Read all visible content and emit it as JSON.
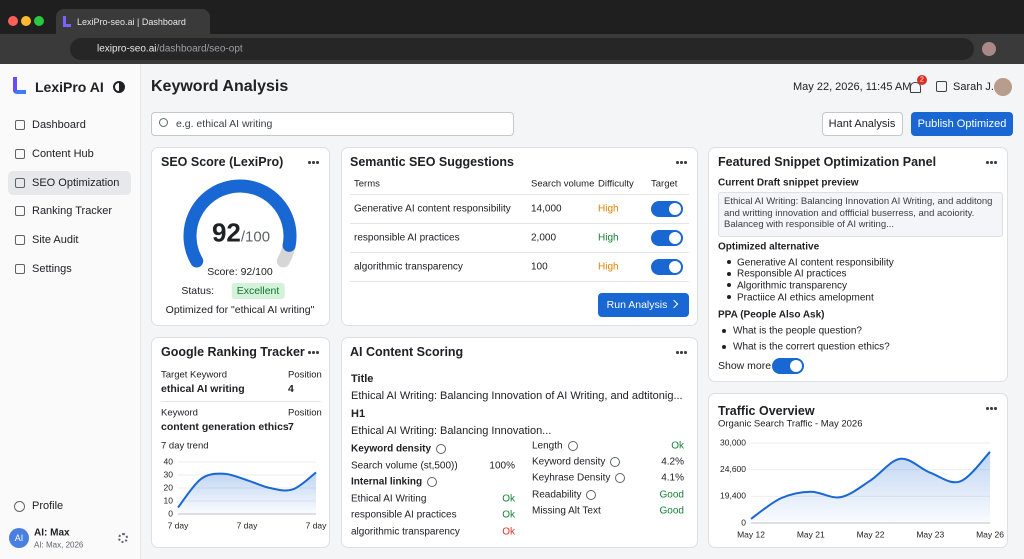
{
  "browser": {
    "tab_title": "LexiPro-seo.ai | Dashboard",
    "url_host": "lexipro-seo.ai",
    "url_path": "/dashboard/seo-opt"
  },
  "sidebar": {
    "brand": "LexiPro AI",
    "nav": [
      "Dashboard",
      "Content Hub",
      "SEO Optimization",
      "Ranking Tracker",
      "Site Audit",
      "Settings"
    ],
    "active": 2,
    "profile": "Profile",
    "user": {
      "initials": "AI",
      "name": "AI: Max",
      "subtitle": "AI: Max, 2026"
    }
  },
  "header": {
    "title": "Keyword Analysis",
    "datetime": "May 22, 2026, 11:45 AM",
    "notifications": "2",
    "user": "Sarah J."
  },
  "toolbar": {
    "search_placeholder": "e.g. ethical AI writing",
    "buttons": [
      "Hant Analysis",
      "Publish Optimized"
    ]
  },
  "seo_score": {
    "title": "SEO Score (LexiPro)",
    "chart": {
      "type": "gauge",
      "value": 92,
      "range": [
        0,
        100
      ],
      "color": "#1967d2",
      "track_color": "#d6d6d6"
    },
    "max_label": "/100",
    "score_text": "Score: 92/100",
    "status_label": "Status:",
    "status": "Excellent",
    "note": "Optimized for \"ethical AI writing\""
  },
  "semantic": {
    "title": "Semantic SEO Suggestions",
    "columns": [
      "Terms",
      "Search volume",
      "Difficulty",
      "Target"
    ],
    "rows": [
      {
        "term": "Generative AI content responsibility",
        "volume": "14,000",
        "difficulty": "High",
        "difficulty_color": "#e08600",
        "target": true
      },
      {
        "term": "responsible AI practices",
        "volume": "2,000",
        "difficulty": "High",
        "difficulty_color": "#188038",
        "target": true
      },
      {
        "term": "algorithmic transparency",
        "volume": "100",
        "difficulty": "High",
        "difficulty_color": "#e08600",
        "target": true
      }
    ],
    "button": "Run Analysis"
  },
  "snippet": {
    "title": "Featured Snippet Optimization Panel",
    "draft_heading": "Current Draft snippet preview",
    "draft": "Ethical AI Writing: Balancing Innovation AI Writing, and additong and writting innovation and offficial buserress, and acoiority. Balanceg with responsible of AI writing...",
    "alt_heading": "Optimized alternative",
    "alt_items": [
      "Generative AI content responsibility",
      "Responsible AI practices",
      "Algorithmic transparency",
      "Practiice AI ethics amelopment"
    ],
    "ppa_heading": "PPA (People Also Ask)",
    "ppa": [
      "What is the people question?",
      "What is the corrert question ethics?"
    ],
    "show_more": "Show more",
    "show_more_on": true
  },
  "ranking": {
    "title": "Google Ranking Tracker",
    "keywords": [
      {
        "key_label": "Target Keyword",
        "keyword": "ethical AI writing",
        "pos_label": "Position",
        "position": 4
      },
      {
        "key_label": "Keyword",
        "keyword": "content generation ethics",
        "pos_label": "Position",
        "position": 7
      }
    ],
    "trend_label": "7 day trend",
    "chart": {
      "type": "area",
      "categories": [
        "7 day",
        null,
        null,
        "7 day",
        null,
        null,
        "7 day"
      ],
      "values": [
        5,
        27,
        31,
        26,
        20,
        19,
        32
      ],
      "ylim": [
        0,
        40
      ],
      "yticks": [
        0,
        10,
        20,
        30,
        40
      ],
      "color": "#1967d2",
      "grid": true
    }
  },
  "content_scoring": {
    "title": "AI Content Scoring",
    "title_label": "Title",
    "title_text": "Ethical AI Writing: Balancing Innovation of AI Writing, and adtitonig...",
    "h1_label": "H1",
    "h1_text": "Ethical AI Writing: Balancing Innovation...",
    "left": [
      {
        "label": "Keyword density",
        "info": true,
        "bold": true
      },
      {
        "label": "Search volume (st,500))",
        "value": "100%",
        "color": "#202124"
      },
      {
        "label": "Internal linking",
        "info": true,
        "bold": true
      },
      {
        "label": "Ethical AI Writing",
        "value": "Ok",
        "color": "#188038"
      },
      {
        "label": "responsible AI practices",
        "value": "Ok",
        "color": "#188038"
      },
      {
        "label": "algorithmic transparency",
        "value": "Ok",
        "color": "#d93025"
      }
    ],
    "right": [
      {
        "label": "Length",
        "info": true,
        "value": "Ok",
        "color": "#188038"
      },
      {
        "label": "Keyword density",
        "info": true,
        "value": "4.2%",
        "color": "#202124"
      },
      {
        "label": "Keyhrase Density",
        "info": true,
        "value": "4.1%",
        "color": "#202124"
      },
      {
        "label": "Readability",
        "info": true,
        "value": "Good",
        "color": "#188038"
      },
      {
        "label": "Missing Alt Text",
        "value": "Good",
        "color": "#188038"
      }
    ]
  },
  "traffic": {
    "title": "Traffic Overview",
    "subtitle": "Organic Search Traffic - May 2026",
    "chart": {
      "type": "area",
      "categories": [
        "May 12",
        null,
        "May 21",
        null,
        "May 22",
        null,
        "May 23",
        null,
        "May 26"
      ],
      "values": [
        3000,
        18000,
        20300,
        18800,
        22500,
        26800,
        24000,
        22300,
        28200
      ],
      "ylim": [
        0,
        30000
      ],
      "yticks": [
        0,
        {
          "value": 19400,
          "label": "19,400"
        },
        {
          "value": 24600,
          "label": "24,600"
        },
        {
          "value": 30000,
          "label": "30,000"
        }
      ],
      "color": "#1967d2",
      "grid": true
    }
  }
}
